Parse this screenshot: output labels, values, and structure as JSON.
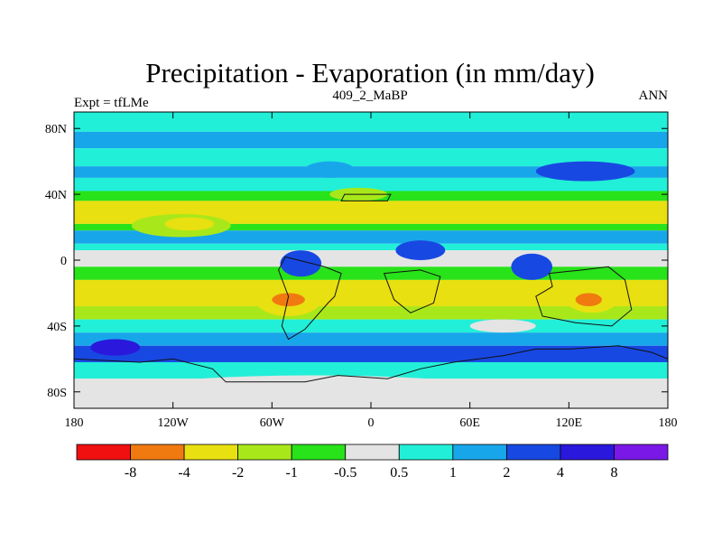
{
  "chart_data": {
    "type": "heatmap",
    "title": "Precipitation - Evaporation (in mm/day)",
    "subtitle_left": "Expt = tfLMe",
    "subtitle_center": "409_2_MaBP",
    "subtitle_right": "ANN",
    "x_ticks": [
      "180",
      "120W",
      "60W",
      "0",
      "60E",
      "120E",
      "180"
    ],
    "x_tick_values": [
      -180,
      -120,
      -60,
      0,
      60,
      120,
      180
    ],
    "y_ticks": [
      "80N",
      "40N",
      "0",
      "40S",
      "80S"
    ],
    "y_tick_values": [
      80,
      40,
      0,
      -40,
      -80
    ],
    "xlim": [
      -180,
      180
    ],
    "ylim": [
      -90,
      90
    ],
    "colorbar": {
      "colors": [
        "#f01010",
        "#f07a10",
        "#e8e010",
        "#a8e81a",
        "#28e21a",
        "#e4e4e4",
        "#22efd8",
        "#18a6ea",
        "#1848e2",
        "#2a18dc",
        "#7a18e8"
      ],
      "labels": [
        "-8",
        "-4",
        "-2",
        "-1",
        "-0.5",
        "0.5",
        "1",
        "2",
        "4",
        "8"
      ]
    },
    "zonal_bands": [
      {
        "lat_from": 90,
        "lat_to": 78,
        "class": 6
      },
      {
        "lat_from": 78,
        "lat_to": 68,
        "class": 7
      },
      {
        "lat_from": 68,
        "lat_to": 57,
        "class": 6
      },
      {
        "lat_from": 57,
        "lat_to": 50,
        "class": 7
      },
      {
        "lat_from": 50,
        "lat_to": 42,
        "class": 6
      },
      {
        "lat_from": 42,
        "lat_to": 36,
        "class": 4
      },
      {
        "lat_from": 36,
        "lat_to": 22,
        "class": 2
      },
      {
        "lat_from": 22,
        "lat_to": 18,
        "class": 4
      },
      {
        "lat_from": 18,
        "lat_to": 10,
        "class": 7
      },
      {
        "lat_from": 10,
        "lat_to": 6,
        "class": 6
      },
      {
        "lat_from": 6,
        "lat_to": -4,
        "class": 5
      },
      {
        "lat_from": -4,
        "lat_to": -12,
        "class": 4
      },
      {
        "lat_from": -12,
        "lat_to": -28,
        "class": 2
      },
      {
        "lat_from": -28,
        "lat_to": -36,
        "class": 3
      },
      {
        "lat_from": -36,
        "lat_to": -44,
        "class": 6
      },
      {
        "lat_from": -44,
        "lat_to": -52,
        "class": 7
      },
      {
        "lat_from": -52,
        "lat_to": -62,
        "class": 8
      },
      {
        "lat_from": -62,
        "lat_to": -72,
        "class": 6
      },
      {
        "lat_from": -72,
        "lat_to": -90,
        "class": 5
      }
    ],
    "regions": [
      {
        "name": "pacific-north-dry-tongue",
        "class": 3,
        "lon": [
          -145,
          -85
        ],
        "lat": [
          28,
          14
        ]
      },
      {
        "name": "pacific-north-dry-core",
        "class": 2,
        "lon": [
          -125,
          -95
        ],
        "lat": [
          26,
          18
        ]
      },
      {
        "name": "atlantic-north-wet",
        "class": 7,
        "lon": [
          -40,
          -10
        ],
        "lat": [
          60,
          50
        ]
      },
      {
        "name": "north-atlantic-dry-arc",
        "class": 3,
        "lon": [
          -25,
          10
        ],
        "lat": [
          44,
          36
        ]
      },
      {
        "name": "asia-north-wet",
        "class": 8,
        "lon": [
          100,
          160
        ],
        "lat": [
          60,
          48
        ]
      },
      {
        "name": "tropical-africa-wet",
        "class": 8,
        "lon": [
          15,
          45
        ],
        "lat": [
          12,
          0
        ]
      },
      {
        "name": "tropical-america-wet",
        "class": 8,
        "lon": [
          -55,
          -30
        ],
        "lat": [
          6,
          -10
        ]
      },
      {
        "name": "maritime-wet",
        "class": 8,
        "lon": [
          85,
          110
        ],
        "lat": [
          4,
          -12
        ]
      },
      {
        "name": "south-atlantic-dry",
        "class": 2,
        "lon": [
          -70,
          -30
        ],
        "lat": [
          -14,
          -34
        ]
      },
      {
        "name": "south-atlantic-dry-core",
        "class": 1,
        "lon": [
          -60,
          -40
        ],
        "lat": [
          -20,
          -28
        ]
      },
      {
        "name": "australia-dry",
        "class": 2,
        "lon": [
          118,
          150
        ],
        "lat": [
          -14,
          -32
        ]
      },
      {
        "name": "australia-dry-core",
        "class": 1,
        "lon": [
          124,
          140
        ],
        "lat": [
          -20,
          -28
        ]
      },
      {
        "name": "indian-south-gray",
        "class": 5,
        "lon": [
          60,
          100
        ],
        "lat": [
          -36,
          -44
        ]
      },
      {
        "name": "southern-ocean-deep",
        "class": 9,
        "lon": [
          -170,
          -140
        ],
        "lat": [
          -48,
          -58
        ]
      },
      {
        "name": "antarctic-gray",
        "class": 5,
        "lon": [
          -150,
          80
        ],
        "lat": [
          -70,
          -90
        ]
      }
    ],
    "land_outlines": [
      {
        "name": "south-america",
        "points": [
          [
            -52,
            2
          ],
          [
            -36,
            -2
          ],
          [
            -28,
            -4
          ],
          [
            -18,
            -8
          ],
          [
            -22,
            -22
          ],
          [
            -26,
            -26
          ],
          [
            -40,
            -42
          ],
          [
            -50,
            -48
          ],
          [
            -54,
            -40
          ],
          [
            -50,
            -22
          ],
          [
            -56,
            -6
          ]
        ]
      },
      {
        "name": "africa-north-box",
        "points": [
          [
            -16,
            40
          ],
          [
            -18,
            36
          ],
          [
            10,
            36
          ],
          [
            12,
            40
          ]
        ]
      },
      {
        "name": "africa-south",
        "points": [
          [
            8,
            -8
          ],
          [
            30,
            -6
          ],
          [
            42,
            -10
          ],
          [
            38,
            -26
          ],
          [
            24,
            -32
          ],
          [
            14,
            -24
          ]
        ]
      },
      {
        "name": "australia",
        "points": [
          [
            108,
            -8
          ],
          [
            128,
            -6
          ],
          [
            144,
            -4
          ],
          [
            154,
            -12
          ],
          [
            158,
            -30
          ],
          [
            146,
            -40
          ],
          [
            124,
            -38
          ],
          [
            104,
            -34
          ],
          [
            100,
            -22
          ],
          [
            110,
            -16
          ]
        ]
      },
      {
        "name": "antarctica",
        "points": [
          [
            -180,
            -60
          ],
          [
            -140,
            -62
          ],
          [
            -120,
            -60
          ],
          [
            -96,
            -66
          ],
          [
            -88,
            -74
          ],
          [
            -40,
            -74
          ],
          [
            -20,
            -70
          ],
          [
            10,
            -72
          ],
          [
            30,
            -66
          ],
          [
            50,
            -62
          ],
          [
            80,
            -58
          ],
          [
            100,
            -54
          ],
          [
            120,
            -54
          ],
          [
            150,
            -52
          ],
          [
            170,
            -56
          ],
          [
            180,
            -60
          ]
        ]
      }
    ]
  }
}
